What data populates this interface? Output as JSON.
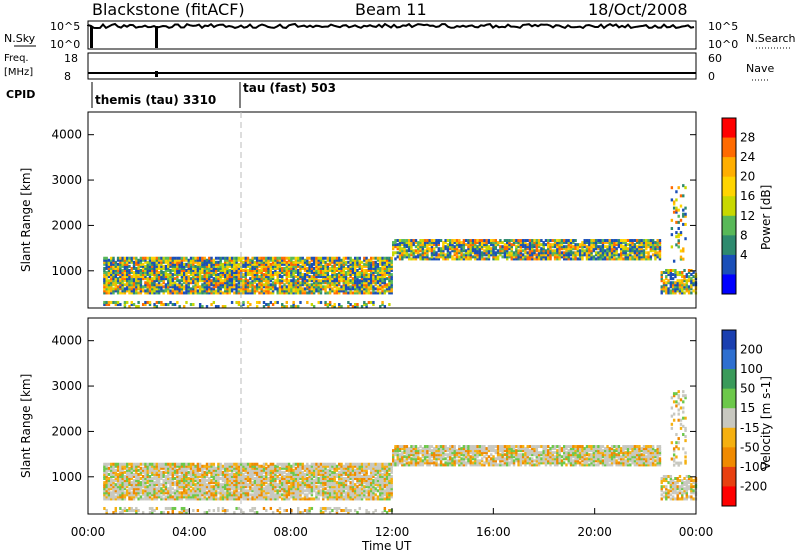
{
  "header": {
    "title": "Blackstone (fitACF)",
    "beam": "Beam 11",
    "date": "18/Oct/2008"
  },
  "top_panels": {
    "nsky_label": "N.Sky",
    "nsearch_label": "N.Search",
    "freq_label": "Freq.",
    "freq_unit": "[MHz]",
    "nave_label": "Nave",
    "cpid_label": "CPID",
    "left_ticks_nsky": [
      "10^5",
      "10^0"
    ],
    "right_ticks_nsearch": [
      "10^5",
      "10^0"
    ],
    "left_ticks_freq": [
      "18",
      "8"
    ],
    "right_ticks_nave": [
      "60",
      "0"
    ],
    "cpid_entries": [
      {
        "label": "themis (tau) 3310",
        "start_hour": 0.5
      },
      {
        "label": "tau (fast) 503",
        "start_hour": 6.0
      }
    ]
  },
  "chart_data": [
    {
      "type": "heatmap",
      "name": "power",
      "xlabel": "",
      "ylabel": "Slant Range [km]",
      "colorbar_label": "Power [dB]",
      "colorbar_ticks": [
        "28",
        "24",
        "20",
        "16",
        "12",
        "8",
        "4"
      ],
      "colorbar_colors": [
        "#ff0000",
        "#ff6a00",
        "#ffae00",
        "#ffd400",
        "#c8d800",
        "#58b858",
        "#2e8a6e",
        "#1a4fb8",
        "#0000ff"
      ],
      "x_range_hours": [
        0,
        24
      ],
      "y_range_km": [
        180,
        4500
      ],
      "y_ticks": [
        1000,
        2000,
        3000,
        4000
      ],
      "dashed_line_hour": 6.0
    },
    {
      "type": "heatmap",
      "name": "velocity",
      "xlabel": "Time UT",
      "ylabel": "Slant Range [km]",
      "colorbar_label": "Velocity [m s-1]",
      "colorbar_ticks": [
        "200",
        "100",
        "50",
        "15",
        "-15",
        "-50",
        "-100",
        "-200"
      ],
      "colorbar_colors": [
        "#1a3fb0",
        "#2e6fd0",
        "#3a9a5a",
        "#6cc84a",
        "#c8c8c0",
        "#f5b010",
        "#f08a00",
        "#e84010",
        "#ff0000"
      ],
      "x_range_hours": [
        0,
        24
      ],
      "y_range_km": [
        180,
        4500
      ],
      "y_ticks": [
        1000,
        2000,
        3000,
        4000
      ],
      "x_ticks": [
        "00:00",
        "04:00",
        "08:00",
        "12:00",
        "16:00",
        "20:00",
        "00:00"
      ],
      "dashed_line_hour": 6.0
    }
  ]
}
